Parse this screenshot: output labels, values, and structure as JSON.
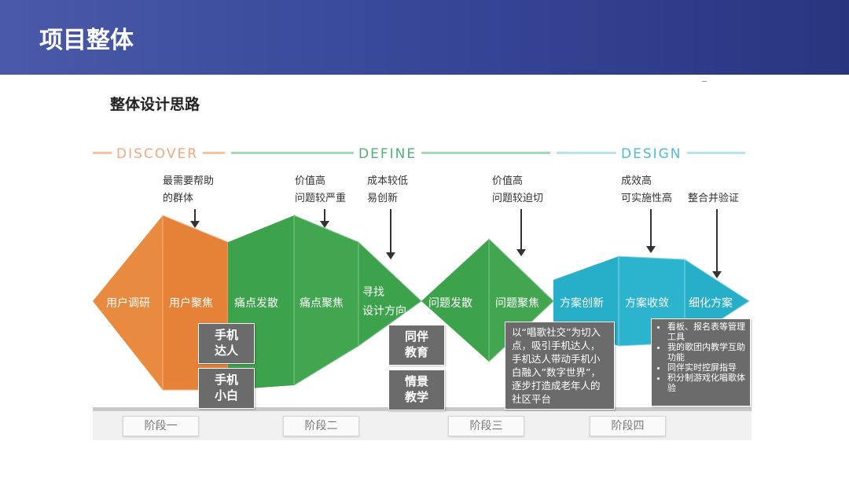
{
  "header": {
    "title": "项目整体"
  },
  "subtitle": "整体设计思路",
  "phases": [
    {
      "label": "DISCOVER",
      "color": "#f0a981"
    },
    {
      "label": "DEFINE",
      "color": "#4fb07a"
    },
    {
      "label": "DESIGN",
      "color": "#4bbcd3"
    }
  ],
  "notes": [
    {
      "lines": [
        "最需要帮助",
        "的群体"
      ]
    },
    {
      "lines": [
        "价值高",
        "问题较严重"
      ]
    },
    {
      "lines": [
        "成本较低",
        "易创新"
      ]
    },
    {
      "lines": [
        "价值高",
        "问题较迫切"
      ]
    },
    {
      "lines": [
        "成效高",
        "可实施性高"
      ]
    },
    {
      "lines": [
        "整合并验证"
      ]
    }
  ],
  "segments": [
    {
      "label": "用户调研",
      "color": "#e8843c"
    },
    {
      "label": "用户聚焦",
      "color": "#e8843c"
    },
    {
      "label": "痛点发散",
      "color": "#3fa54e"
    },
    {
      "label": "痛点聚焦",
      "color": "#3fa54e"
    },
    {
      "label": "寻找",
      "label2": "设计方向",
      "color": "#3fa54e"
    },
    {
      "label": "问题发散",
      "color": "#3fa54e"
    },
    {
      "label": "问题聚焦",
      "color": "#3fa54e"
    },
    {
      "label": "方案创新",
      "color": "#29b1cc"
    },
    {
      "label": "方案收敛",
      "color": "#29b1cc"
    },
    {
      "label": "细化方案",
      "color": "#29b1cc"
    }
  ],
  "boxes": {
    "b1": [
      "手机",
      "达人"
    ],
    "b2": [
      "手机",
      "小白"
    ],
    "b3": [
      "同伴",
      "教育"
    ],
    "b4": [
      "情景",
      "教学"
    ],
    "b5": "以“唱歌社交”为切入点，吸引手机达人，手机达人带动手机小白融入”数字世界”，逐步打造成老年人的社区平台",
    "b6": [
      "看板、报名表等管理工具",
      "我的歌团内教学互助功能",
      "同伴实时控屏指导",
      "积分制游戏化唱歌体验"
    ]
  },
  "stages": [
    "阶段一",
    "阶段二",
    "阶段三",
    "阶段四"
  ]
}
